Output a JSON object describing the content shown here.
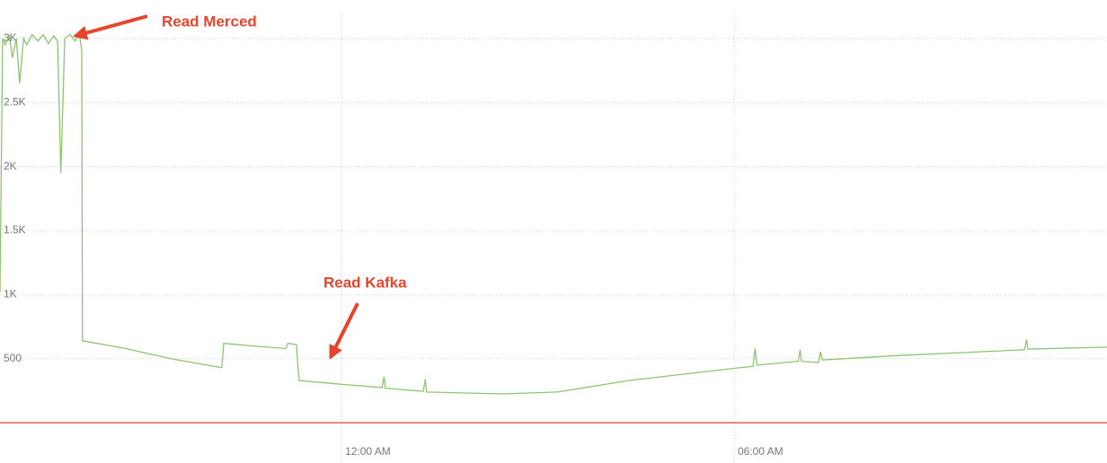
{
  "chart_data": {
    "type": "line",
    "annotations": [
      "Read Merced",
      "Read Kafka"
    ],
    "xlim": [
      -5.22,
      11.7
    ],
    "xticks": [
      {
        "value": 0,
        "label": "12:00 AM"
      },
      {
        "value": 6,
        "label": "06:00 AM"
      }
    ],
    "ylim": [
      -90,
      3300
    ],
    "yticks": [
      500,
      {
        "value": 1000,
        "label": "1K"
      },
      {
        "value": 1500,
        "label": "1.5K"
      },
      {
        "value": 2000,
        "label": "2K"
      },
      {
        "value": 2500,
        "label": "2.5K"
      },
      {
        "value": 3000,
        "label": "3K"
      }
    ],
    "grid": true,
    "series": [
      {
        "color": "#8cc56f",
        "x": [
          -5.22,
          -5.18,
          -5.14,
          -5.08,
          -5.03,
          -4.97,
          -4.92,
          -4.86,
          -4.81,
          -4.73,
          -4.64,
          -4.56,
          -4.48,
          -4.4,
          -4.34,
          -4.29,
          -4.23,
          -4.15,
          -4.07,
          -4.01,
          -3.97,
          -3.96,
          -3.3,
          -2.61,
          -1.83,
          -1.8,
          -1.37,
          -0.85,
          -0.82,
          -0.69,
          -0.65,
          0,
          0.62,
          0.65,
          0.67,
          1.25,
          1.28,
          1.3,
          2.47,
          3.3,
          4.4,
          6.0,
          6.29,
          6.32,
          6.35,
          6.98,
          7.01,
          7.03,
          7.29,
          7.32,
          7.35,
          8.52,
          10.44,
          10.47,
          10.49,
          11.7
        ],
        "values": [
          1020,
          3000,
          2950,
          3020,
          2850,
          3000,
          2650,
          3000,
          2950,
          3030,
          2980,
          3030,
          2960,
          3020,
          2980,
          1950,
          3000,
          3030,
          2980,
          3040,
          2900,
          640,
          580,
          500,
          430,
          620,
          600,
          580,
          620,
          610,
          330,
          300,
          275,
          360,
          270,
          245,
          340,
          240,
          225,
          240,
          330,
          425,
          440,
          580,
          450,
          480,
          570,
          480,
          470,
          555,
          490,
          525,
          570,
          650,
          575,
          590
        ]
      },
      {
        "color": "#e03c3c",
        "x": [
          -5.22,
          11.7
        ],
        "values": [
          0,
          0
        ]
      }
    ]
  }
}
